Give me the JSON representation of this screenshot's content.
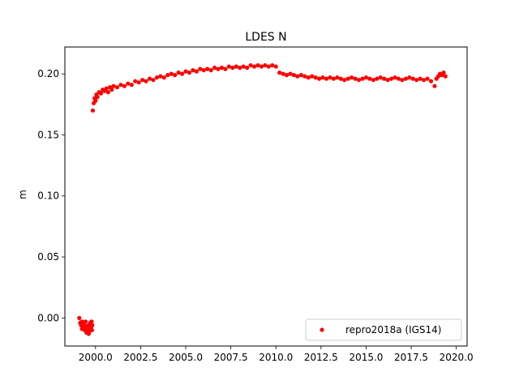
{
  "chart_data": {
    "type": "scatter",
    "title": "LDES N",
    "xlabel": "",
    "ylabel": "m",
    "xlim": [
      1998.3,
      2020.6
    ],
    "ylim": [
      -0.023,
      0.222
    ],
    "grid": false,
    "legend_placement": "lower-right",
    "x_ticks": [
      2000.0,
      2002.5,
      2005.0,
      2007.5,
      2010.0,
      2012.5,
      2015.0,
      2017.5,
      2020.0
    ],
    "x_tick_labels": [
      "2000.0",
      "2002.5",
      "2005.0",
      "2007.5",
      "2010.0",
      "2012.5",
      "2015.0",
      "2017.5",
      "2020.0"
    ],
    "y_ticks": [
      0.0,
      0.05,
      0.1,
      0.15,
      0.2
    ],
    "y_tick_labels": [
      "0.00",
      "0.05",
      "0.10",
      "0.15",
      "0.20"
    ],
    "series": [
      {
        "name": "repro2018a (IGS14)",
        "color": "#ff0000",
        "marker": "dot",
        "points": [
          [
            1999.1,
            0.0
          ],
          [
            1999.15,
            -0.004
          ],
          [
            1999.2,
            -0.006
          ],
          [
            1999.25,
            -0.003
          ],
          [
            1999.3,
            -0.008
          ],
          [
            1999.35,
            -0.005
          ],
          [
            1999.4,
            -0.01
          ],
          [
            1999.45,
            -0.007
          ],
          [
            1999.5,
            -0.012
          ],
          [
            1999.55,
            -0.009
          ],
          [
            1999.6,
            -0.006
          ],
          [
            1999.65,
            -0.011
          ],
          [
            1999.7,
            -0.004
          ],
          [
            1999.75,
            -0.008
          ],
          [
            1999.78,
            -0.003
          ],
          [
            1999.8,
            -0.01
          ],
          [
            1999.82,
            -0.006
          ],
          [
            1999.25,
            -0.009
          ],
          [
            1999.45,
            -0.003
          ],
          [
            1999.62,
            -0.013
          ],
          [
            1999.85,
            0.17
          ],
          [
            1999.9,
            0.176
          ],
          [
            1999.95,
            0.18
          ],
          [
            2000.0,
            0.178
          ],
          [
            2000.05,
            0.183
          ],
          [
            2000.1,
            0.181
          ],
          [
            2000.2,
            0.185
          ],
          [
            2000.3,
            0.184
          ],
          [
            2000.4,
            0.187
          ],
          [
            2000.5,
            0.186
          ],
          [
            2000.6,
            0.188
          ],
          [
            2000.7,
            0.185
          ],
          [
            2000.8,
            0.189
          ],
          [
            2000.9,
            0.187
          ],
          [
            2001.0,
            0.19
          ],
          [
            2001.2,
            0.189
          ],
          [
            2001.4,
            0.191
          ],
          [
            2001.6,
            0.19
          ],
          [
            2001.8,
            0.192
          ],
          [
            2002.0,
            0.191
          ],
          [
            2002.2,
            0.194
          ],
          [
            2002.4,
            0.193
          ],
          [
            2002.6,
            0.195
          ],
          [
            2002.8,
            0.194
          ],
          [
            2003.0,
            0.196
          ],
          [
            2003.2,
            0.195
          ],
          [
            2003.4,
            0.197
          ],
          [
            2003.6,
            0.198
          ],
          [
            2003.8,
            0.197
          ],
          [
            2004.0,
            0.199
          ],
          [
            2004.2,
            0.2
          ],
          [
            2004.4,
            0.199
          ],
          [
            2004.6,
            0.201
          ],
          [
            2004.8,
            0.2
          ],
          [
            2005.0,
            0.202
          ],
          [
            2005.2,
            0.201
          ],
          [
            2005.4,
            0.203
          ],
          [
            2005.6,
            0.202
          ],
          [
            2005.8,
            0.204
          ],
          [
            2006.0,
            0.203
          ],
          [
            2006.2,
            0.204
          ],
          [
            2006.4,
            0.203
          ],
          [
            2006.6,
            0.205
          ],
          [
            2006.8,
            0.204
          ],
          [
            2007.0,
            0.205
          ],
          [
            2007.2,
            0.204
          ],
          [
            2007.4,
            0.206
          ],
          [
            2007.6,
            0.205
          ],
          [
            2007.8,
            0.206
          ],
          [
            2008.0,
            0.205
          ],
          [
            2008.2,
            0.206
          ],
          [
            2008.4,
            0.205
          ],
          [
            2008.6,
            0.207
          ],
          [
            2008.8,
            0.206
          ],
          [
            2009.0,
            0.207
          ],
          [
            2009.2,
            0.206
          ],
          [
            2009.4,
            0.207
          ],
          [
            2009.6,
            0.206
          ],
          [
            2009.8,
            0.207
          ],
          [
            2010.0,
            0.206
          ],
          [
            2010.2,
            0.201
          ],
          [
            2010.4,
            0.2
          ],
          [
            2010.6,
            0.199
          ],
          [
            2010.8,
            0.2
          ],
          [
            2011.0,
            0.199
          ],
          [
            2011.2,
            0.198
          ],
          [
            2011.4,
            0.199
          ],
          [
            2011.6,
            0.198
          ],
          [
            2011.8,
            0.197
          ],
          [
            2012.0,
            0.198
          ],
          [
            2012.2,
            0.197
          ],
          [
            2012.4,
            0.196
          ],
          [
            2012.6,
            0.197
          ],
          [
            2012.8,
            0.196
          ],
          [
            2013.0,
            0.197
          ],
          [
            2013.2,
            0.196
          ],
          [
            2013.4,
            0.197
          ],
          [
            2013.6,
            0.196
          ],
          [
            2013.8,
            0.195
          ],
          [
            2014.0,
            0.196
          ],
          [
            2014.2,
            0.197
          ],
          [
            2014.4,
            0.196
          ],
          [
            2014.6,
            0.195
          ],
          [
            2014.8,
            0.196
          ],
          [
            2015.0,
            0.197
          ],
          [
            2015.2,
            0.196
          ],
          [
            2015.4,
            0.195
          ],
          [
            2015.6,
            0.196
          ],
          [
            2015.8,
            0.197
          ],
          [
            2016.0,
            0.196
          ],
          [
            2016.2,
            0.195
          ],
          [
            2016.4,
            0.196
          ],
          [
            2016.6,
            0.197
          ],
          [
            2016.8,
            0.196
          ],
          [
            2017.0,
            0.195
          ],
          [
            2017.2,
            0.196
          ],
          [
            2017.4,
            0.197
          ],
          [
            2017.6,
            0.196
          ],
          [
            2017.8,
            0.195
          ],
          [
            2018.0,
            0.196
          ],
          [
            2018.2,
            0.195
          ],
          [
            2018.4,
            0.196
          ],
          [
            2018.6,
            0.194
          ],
          [
            2018.8,
            0.19
          ],
          [
            2018.9,
            0.196
          ],
          [
            2019.0,
            0.198
          ],
          [
            2019.1,
            0.2
          ],
          [
            2019.2,
            0.199
          ],
          [
            2019.3,
            0.201
          ],
          [
            2019.4,
            0.198
          ]
        ]
      }
    ]
  }
}
